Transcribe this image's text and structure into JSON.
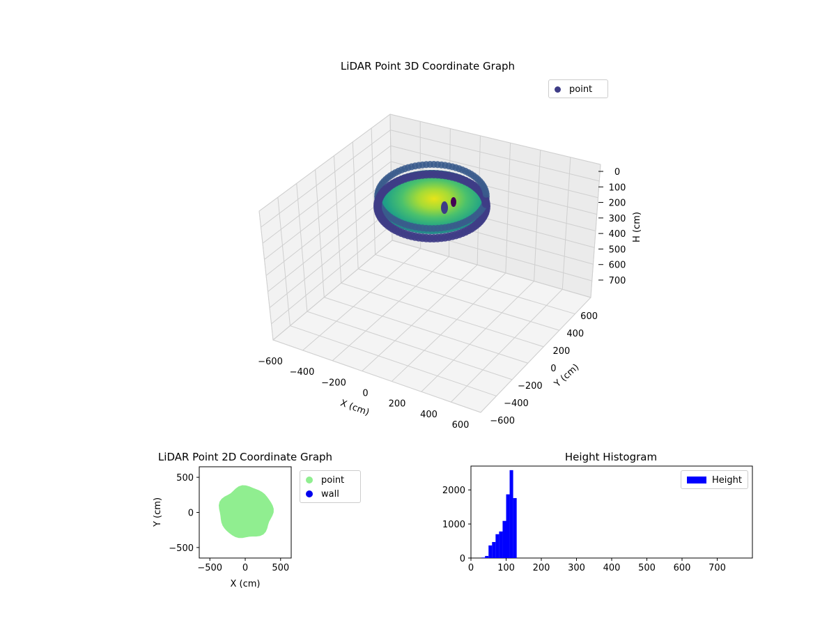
{
  "colors": {
    "point_3d": "#3e3c86",
    "point_2d": "#90ee90",
    "wall": "#0000ee",
    "hist": "#0000ff",
    "pane": "#f2f2f2",
    "grid": "#cfcfcf"
  },
  "chart_data": [
    {
      "type": "scatter3d",
      "title": "LiDAR Point 3D Coordinate Graph",
      "xlabel": "X (cm)",
      "ylabel": "Y (cm)",
      "zlabel": "H (cm)",
      "x_ticks": [
        "−600",
        "−400",
        "−200",
        "0",
        "200",
        "400",
        "600"
      ],
      "y_ticks": [
        "−600",
        "−400",
        "−200",
        "0",
        "200",
        "400",
        "600"
      ],
      "z_ticks": [
        "0",
        "100",
        "200",
        "300",
        "400",
        "500",
        "600",
        "700"
      ],
      "z_inverted": true,
      "legend": [
        {
          "label": "point",
          "color": "#3e3c86"
        }
      ],
      "legend_position": "upper right",
      "colormap": "viridis",
      "point_cloud": {
        "x_range": [
          -380,
          380
        ],
        "y_range": [
          -380,
          380
        ],
        "h_range": [
          40,
          180
        ]
      }
    },
    {
      "type": "scatter",
      "title": "LiDAR Point 2D Coordinate Graph",
      "xlabel": "X (cm)",
      "ylabel": "Y (cm)",
      "xlim": [
        -650,
        650
      ],
      "ylim": [
        -650,
        650
      ],
      "x_ticks": [
        "−500",
        "0",
        "500"
      ],
      "y_ticks": [
        "−500",
        "0",
        "500"
      ],
      "legend": [
        {
          "label": "point",
          "color": "#90ee90"
        },
        {
          "label": "wall",
          "color": "#0000ee"
        }
      ],
      "legend_position": "outside right",
      "point_region": {
        "x_range": [
          -370,
          390
        ],
        "y_range": [
          -370,
          370
        ]
      }
    },
    {
      "type": "bar",
      "title": "Height Histogram",
      "xlabel": "",
      "ylabel": "",
      "xlim": [
        0,
        800
      ],
      "ylim": [
        0,
        2700
      ],
      "x_ticks": [
        "0",
        "100",
        "200",
        "300",
        "400",
        "500",
        "600",
        "700"
      ],
      "y_ticks": [
        "0",
        "1000",
        "2000"
      ],
      "legend": [
        {
          "label": "Height",
          "color": "#0000ff"
        }
      ],
      "legend_position": "upper right",
      "bin_width": 10,
      "bins": [
        {
          "x": 30,
          "value": 15
        },
        {
          "x": 40,
          "value": 60
        },
        {
          "x": 50,
          "value": 370
        },
        {
          "x": 60,
          "value": 470
        },
        {
          "x": 70,
          "value": 700
        },
        {
          "x": 80,
          "value": 780
        },
        {
          "x": 90,
          "value": 1090
        },
        {
          "x": 100,
          "value": 1870
        },
        {
          "x": 110,
          "value": 2580
        },
        {
          "x": 120,
          "value": 1760
        }
      ]
    }
  ]
}
